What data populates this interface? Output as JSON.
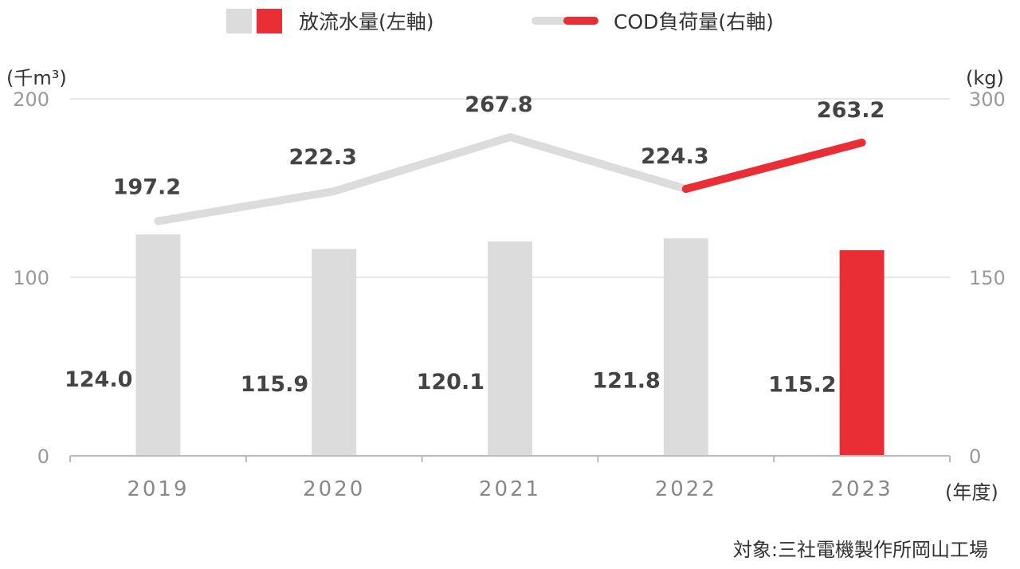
{
  "chart_data": {
    "type": "bar",
    "categories": [
      "2019",
      "2020",
      "2021",
      "2022",
      "2023"
    ],
    "series": [
      {
        "name": "放流水量(左軸)",
        "kind": "bar",
        "axis": "left",
        "values": [
          124.0,
          115.9,
          120.1,
          121.8,
          115.2
        ],
        "labels": [
          "124.0",
          "115.9",
          "120.1",
          "121.8",
          "115.2"
        ]
      },
      {
        "name": "COD負荷量(右軸)",
        "kind": "line",
        "axis": "right",
        "values": [
          197.2,
          222.3,
          267.8,
          224.3,
          263.2
        ],
        "labels": [
          "197.2",
          "222.3",
          "267.8",
          "224.3",
          "263.2"
        ]
      }
    ],
    "y_left": {
      "unit": "(千m³)",
      "ylim": [
        0,
        200
      ],
      "ticks": [
        "0",
        "100",
        "200"
      ]
    },
    "y_right": {
      "unit": "(kg)",
      "ylim": [
        0,
        300
      ],
      "ticks": [
        "0",
        "150",
        "300"
      ]
    },
    "x_unit": "(年度)",
    "grid": true,
    "legend_position": "top",
    "colors": {
      "muted": "#DCDCDC",
      "highlight": "#EA2E35"
    },
    "highlight_index": 4
  },
  "note": "対象:三社電機製作所岡山工場"
}
